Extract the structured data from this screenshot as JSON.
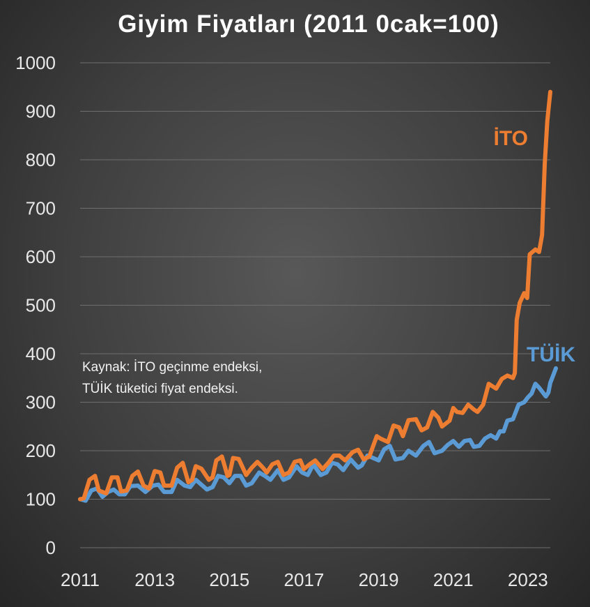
{
  "chart_data": {
    "type": "line",
    "title": "Giyim Fiyatları (2011 0cak=100)",
    "ylim": [
      0,
      1000
    ],
    "yticks": [
      "0",
      "100",
      "200",
      "300",
      "400",
      "500",
      "600",
      "700",
      "800",
      "900",
      "1000"
    ],
    "xlim": [
      2011,
      2023.6
    ],
    "xticks": [
      "2011",
      "2013",
      "2015",
      "2017",
      "2019",
      "2021",
      "2023"
    ],
    "grid": true,
    "note_lines": [
      "Kaynak: İTO geçinme endeksi,",
      "TÜİK tüketici fiyat endeksi."
    ],
    "series": [
      {
        "name": "İTO",
        "label": "İTO",
        "color": "#ed7d31",
        "points": [
          [
            2011.0,
            100
          ],
          [
            2011.1,
            102
          ],
          [
            2011.25,
            140
          ],
          [
            2011.4,
            148
          ],
          [
            2011.5,
            118
          ],
          [
            2011.7,
            112
          ],
          [
            2011.85,
            145
          ],
          [
            2012.0,
            145
          ],
          [
            2012.1,
            116
          ],
          [
            2012.25,
            118
          ],
          [
            2012.4,
            148
          ],
          [
            2012.55,
            157
          ],
          [
            2012.7,
            128
          ],
          [
            2012.85,
            122
          ],
          [
            2013.0,
            158
          ],
          [
            2013.15,
            155
          ],
          [
            2013.25,
            128
          ],
          [
            2013.45,
            128
          ],
          [
            2013.6,
            165
          ],
          [
            2013.75,
            175
          ],
          [
            2013.9,
            135
          ],
          [
            2014.0,
            140
          ],
          [
            2014.1,
            168
          ],
          [
            2014.25,
            163
          ],
          [
            2014.45,
            140
          ],
          [
            2014.55,
            145
          ],
          [
            2014.65,
            180
          ],
          [
            2014.8,
            188
          ],
          [
            2014.95,
            148
          ],
          [
            2015.0,
            150
          ],
          [
            2015.1,
            185
          ],
          [
            2015.25,
            183
          ],
          [
            2015.45,
            150
          ],
          [
            2015.6,
            165
          ],
          [
            2015.75,
            177
          ],
          [
            2015.9,
            165
          ],
          [
            2016.0,
            155
          ],
          [
            2016.15,
            172
          ],
          [
            2016.3,
            177
          ],
          [
            2016.45,
            150
          ],
          [
            2016.6,
            155
          ],
          [
            2016.75,
            177
          ],
          [
            2016.9,
            180
          ],
          [
            2017.0,
            162
          ],
          [
            2017.15,
            172
          ],
          [
            2017.3,
            180
          ],
          [
            2017.5,
            162
          ],
          [
            2017.65,
            175
          ],
          [
            2017.8,
            190
          ],
          [
            2017.95,
            190
          ],
          [
            2018.1,
            180
          ],
          [
            2018.3,
            197
          ],
          [
            2018.45,
            202
          ],
          [
            2018.6,
            182
          ],
          [
            2018.75,
            188
          ],
          [
            2018.95,
            230
          ],
          [
            2019.05,
            225
          ],
          [
            2019.25,
            218
          ],
          [
            2019.4,
            252
          ],
          [
            2019.55,
            248
          ],
          [
            2019.65,
            230
          ],
          [
            2019.8,
            263
          ],
          [
            2020.0,
            265
          ],
          [
            2020.15,
            242
          ],
          [
            2020.3,
            248
          ],
          [
            2020.45,
            280
          ],
          [
            2020.6,
            268
          ],
          [
            2020.7,
            250
          ],
          [
            2020.9,
            262
          ],
          [
            2021.0,
            288
          ],
          [
            2021.1,
            280
          ],
          [
            2021.25,
            278
          ],
          [
            2021.4,
            295
          ],
          [
            2021.55,
            285
          ],
          [
            2021.65,
            280
          ],
          [
            2021.8,
            295
          ],
          [
            2021.95,
            338
          ],
          [
            2022.05,
            333
          ],
          [
            2022.15,
            328
          ],
          [
            2022.3,
            348
          ],
          [
            2022.45,
            355
          ],
          [
            2022.6,
            350
          ],
          [
            2022.65,
            360
          ],
          [
            2022.7,
            470
          ],
          [
            2022.78,
            505
          ],
          [
            2022.9,
            525
          ],
          [
            2022.98,
            515
          ],
          [
            2023.05,
            605
          ],
          [
            2023.2,
            615
          ],
          [
            2023.3,
            610
          ],
          [
            2023.38,
            645
          ],
          [
            2023.45,
            790
          ],
          [
            2023.52,
            880
          ],
          [
            2023.6,
            940
          ]
        ]
      },
      {
        "name": "TÜİK",
        "label": "TÜİK",
        "color": "#5b9bd5",
        "points": [
          [
            2011.0,
            100
          ],
          [
            2011.15,
            97
          ],
          [
            2011.3,
            118
          ],
          [
            2011.45,
            122
          ],
          [
            2011.6,
            105
          ],
          [
            2011.75,
            115
          ],
          [
            2011.9,
            120
          ],
          [
            2012.05,
            110
          ],
          [
            2012.2,
            110
          ],
          [
            2012.35,
            127
          ],
          [
            2012.55,
            128
          ],
          [
            2012.75,
            115
          ],
          [
            2012.95,
            128
          ],
          [
            2013.1,
            130
          ],
          [
            2013.25,
            115
          ],
          [
            2013.45,
            115
          ],
          [
            2013.6,
            140
          ],
          [
            2013.8,
            128
          ],
          [
            2013.95,
            125
          ],
          [
            2014.1,
            140
          ],
          [
            2014.25,
            130
          ],
          [
            2014.4,
            120
          ],
          [
            2014.55,
            125
          ],
          [
            2014.7,
            148
          ],
          [
            2014.85,
            145
          ],
          [
            2015.0,
            133
          ],
          [
            2015.15,
            148
          ],
          [
            2015.3,
            148
          ],
          [
            2015.45,
            128
          ],
          [
            2015.6,
            133
          ],
          [
            2015.8,
            155
          ],
          [
            2015.95,
            148
          ],
          [
            2016.1,
            140
          ],
          [
            2016.3,
            160
          ],
          [
            2016.45,
            140
          ],
          [
            2016.6,
            145
          ],
          [
            2016.8,
            168
          ],
          [
            2016.95,
            155
          ],
          [
            2017.1,
            150
          ],
          [
            2017.25,
            172
          ],
          [
            2017.45,
            150
          ],
          [
            2017.6,
            155
          ],
          [
            2017.75,
            175
          ],
          [
            2017.9,
            172
          ],
          [
            2018.05,
            160
          ],
          [
            2018.25,
            182
          ],
          [
            2018.45,
            165
          ],
          [
            2018.55,
            170
          ],
          [
            2018.7,
            190
          ],
          [
            2018.85,
            185
          ],
          [
            2019.0,
            180
          ],
          [
            2019.15,
            203
          ],
          [
            2019.3,
            210
          ],
          [
            2019.45,
            182
          ],
          [
            2019.65,
            185
          ],
          [
            2019.8,
            200
          ],
          [
            2020.0,
            190
          ],
          [
            2020.2,
            210
          ],
          [
            2020.35,
            218
          ],
          [
            2020.5,
            195
          ],
          [
            2020.7,
            200
          ],
          [
            2020.85,
            212
          ],
          [
            2021.0,
            220
          ],
          [
            2021.15,
            208
          ],
          [
            2021.3,
            220
          ],
          [
            2021.45,
            222
          ],
          [
            2021.55,
            208
          ],
          [
            2021.7,
            210
          ],
          [
            2021.85,
            225
          ],
          [
            2022.0,
            232
          ],
          [
            2022.15,
            225
          ],
          [
            2022.25,
            240
          ],
          [
            2022.35,
            240
          ],
          [
            2022.45,
            262
          ],
          [
            2022.6,
            265
          ],
          [
            2022.75,
            295
          ],
          [
            2022.9,
            300
          ],
          [
            2023.0,
            310
          ],
          [
            2023.1,
            318
          ],
          [
            2023.2,
            338
          ],
          [
            2023.3,
            330
          ],
          [
            2023.4,
            320
          ],
          [
            2023.48,
            312
          ],
          [
            2023.55,
            320
          ],
          [
            2023.6,
            340
          ],
          [
            2023.65,
            350
          ],
          [
            2023.75,
            370
          ]
        ]
      }
    ]
  }
}
